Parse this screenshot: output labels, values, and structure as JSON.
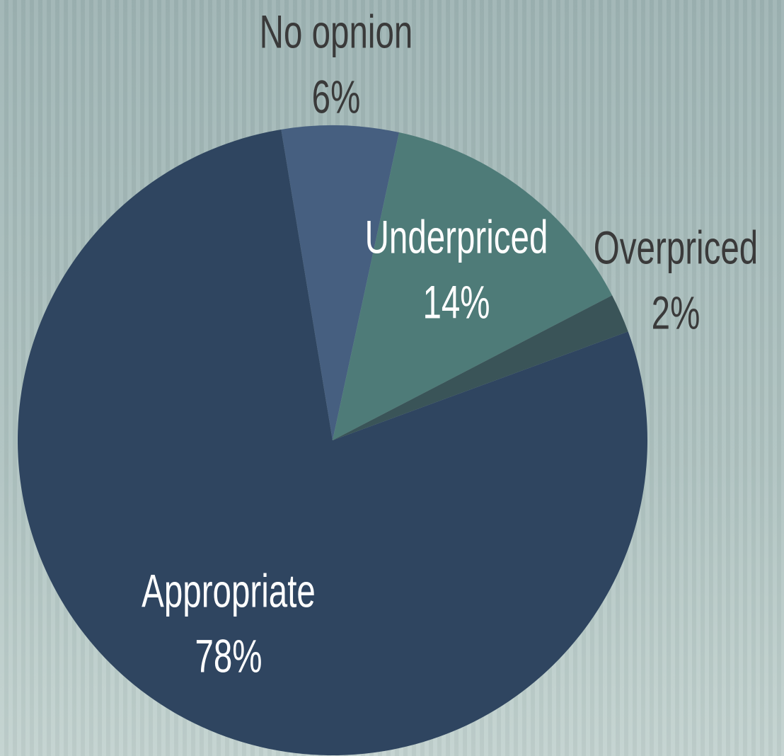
{
  "chart_data": {
    "type": "pie",
    "categories": [
      "No opnion",
      "Underpriced",
      "Overpriced",
      "Appropriate"
    ],
    "values": [
      6,
      14,
      2,
      78
    ],
    "value_labels": [
      "6%",
      "14%",
      "2%",
      "78%"
    ],
    "colors": [
      "#465f80",
      "#4e7b78",
      "#3a5458",
      "#2f4560"
    ]
  }
}
